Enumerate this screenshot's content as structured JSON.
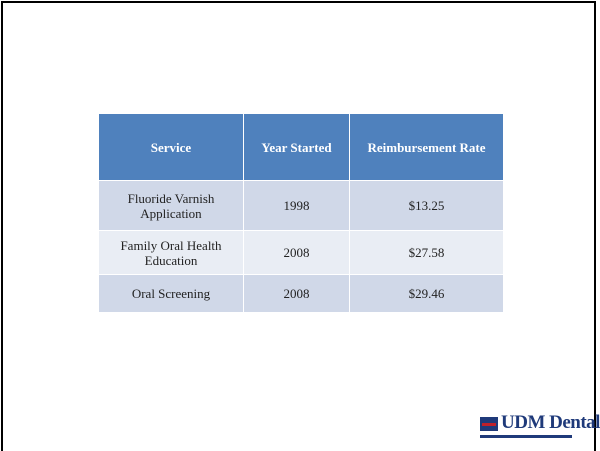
{
  "table": {
    "columns": [
      "Service",
      "Year Started",
      "Reimbursement Rate"
    ],
    "rows": [
      [
        "Fluoride Varnish Application",
        "1998",
        "$13.25"
      ],
      [
        "Family Oral Health Education",
        "2008",
        "$27.58"
      ],
      [
        "Oral Screening",
        "2008",
        "$29.46"
      ]
    ]
  },
  "logo": {
    "text": "UDM Dental"
  }
}
